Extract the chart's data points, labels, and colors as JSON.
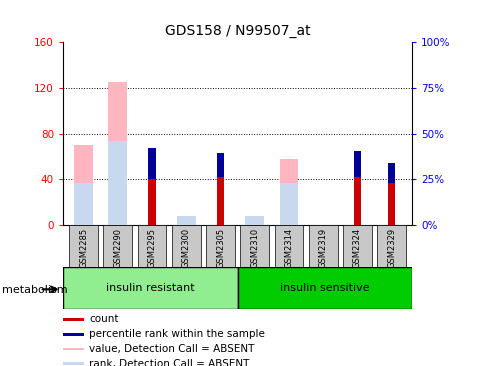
{
  "title": "GDS158 / N99507_at",
  "samples": [
    "GSM2285",
    "GSM2290",
    "GSM2295",
    "GSM2300",
    "GSM2305",
    "GSM2310",
    "GSM2314",
    "GSM2319",
    "GSM2324",
    "GSM2329"
  ],
  "groups": [
    {
      "label": "insulin resistant",
      "start": 0,
      "end": 5,
      "color": "#90EE90"
    },
    {
      "label": "insulin sensitive",
      "start": 5,
      "end": 10,
      "color": "#00CC00"
    }
  ],
  "value_absent": [
    70,
    125,
    0,
    0,
    0,
    0,
    58,
    0,
    0,
    0
  ],
  "rank_absent_pct": [
    23,
    46,
    0,
    5,
    0,
    5,
    23,
    0,
    0,
    0
  ],
  "count": [
    0,
    0,
    40,
    0,
    42,
    0,
    0,
    0,
    42,
    37
  ],
  "percentile_pct": [
    0,
    0,
    17,
    0,
    13,
    0,
    0,
    0,
    14,
    11
  ],
  "left_ylim": [
    0,
    160
  ],
  "left_yticks": [
    0,
    40,
    80,
    120,
    160
  ],
  "right_ylim": [
    0,
    100
  ],
  "right_yticks": [
    0,
    25,
    50,
    75,
    100
  ],
  "right_yticklabels": [
    "0%",
    "25%",
    "50%",
    "75%",
    "100%"
  ],
  "color_value_absent": "#FFB6C1",
  "color_rank_absent": "#C8D8EE",
  "color_count": "#CC0000",
  "color_percentile": "#000099",
  "tick_bg_color": "#C8C8C8",
  "legend_items": [
    {
      "color": "#CC0000",
      "label": "count"
    },
    {
      "color": "#000099",
      "label": "percentile rank within the sample"
    },
    {
      "color": "#FFB6C1",
      "label": "value, Detection Call = ABSENT"
    },
    {
      "color": "#C8D8EE",
      "label": "rank, Detection Call = ABSENT"
    }
  ],
  "group_label": "metabolism"
}
